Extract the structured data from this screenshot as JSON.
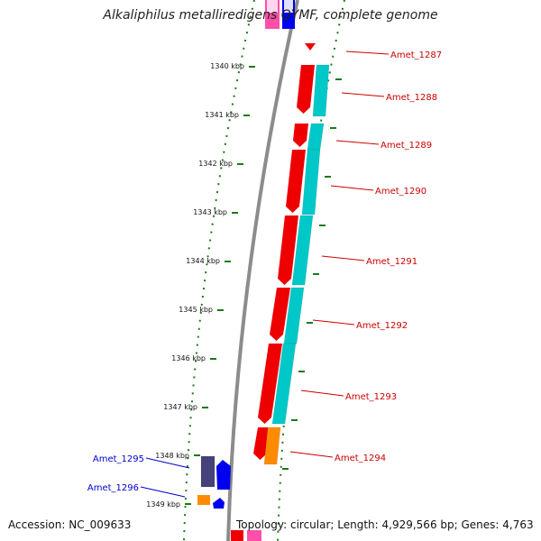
{
  "title": "Alkaliphilus metalliredigens QYMF, complete genome",
  "footer": {
    "accession": "Accession: NC_009633",
    "topology": "Topology: circular; Length: 4,929,566 bp; Genes: 4,763"
  },
  "colors": {
    "gene_forward": "#ee0000",
    "cds_forward": "#00c8c8",
    "gene_reverse": "#0000ee",
    "cds_reverse": "#46437a",
    "orange_feature": "#ff8c00",
    "label_forward": "#cc0000",
    "label_reverse": "#0000cc",
    "tick": "#1a7a1a",
    "backbone": "#8c8c8c"
  },
  "scale_labels": [
    "1340 kbp",
    "1341 kbp",
    "1342 kbp",
    "1343 kbp",
    "1344 kbp",
    "1345 kbp",
    "1346 kbp",
    "1347 kbp",
    "1348 kbp",
    "1349 kbp"
  ],
  "genes": [
    {
      "name": "Amet_1287",
      "strand": "forward"
    },
    {
      "name": "Amet_1288",
      "strand": "forward"
    },
    {
      "name": "Amet_1289",
      "strand": "forward"
    },
    {
      "name": "Amet_1290",
      "strand": "forward"
    },
    {
      "name": "Amet_1291",
      "strand": "forward"
    },
    {
      "name": "Amet_1292",
      "strand": "forward"
    },
    {
      "name": "Amet_1293",
      "strand": "forward"
    },
    {
      "name": "Amet_1294",
      "strand": "forward"
    },
    {
      "name": "Amet_1295",
      "strand": "reverse"
    },
    {
      "name": "Amet_1296",
      "strand": "reverse"
    }
  ]
}
